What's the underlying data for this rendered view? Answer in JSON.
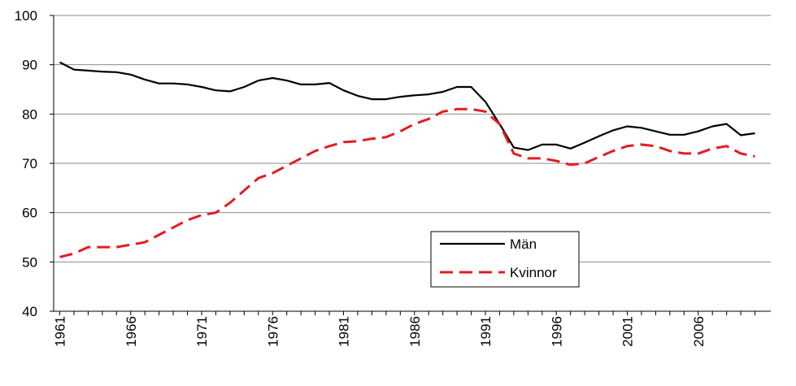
{
  "chart_data": {
    "type": "line",
    "title": "",
    "xlabel": "",
    "ylabel": "",
    "xlim": [
      1961,
      2010
    ],
    "ylim": [
      40,
      100
    ],
    "y_ticks": [
      40,
      50,
      60,
      70,
      80,
      90,
      100
    ],
    "x_tick_labels": [
      "1961",
      "1966",
      "1971",
      "1976",
      "1981",
      "1986",
      "1991",
      "1996",
      "2001",
      "2006"
    ],
    "grid": "horizontal",
    "legend_position": "lower-right inside plot",
    "x": [
      1961,
      1962,
      1963,
      1964,
      1965,
      1966,
      1967,
      1968,
      1969,
      1970,
      1971,
      1972,
      1973,
      1974,
      1975,
      1976,
      1977,
      1978,
      1979,
      1980,
      1981,
      1982,
      1983,
      1984,
      1985,
      1986,
      1987,
      1988,
      1989,
      1990,
      1991,
      1992,
      1993,
      1994,
      1995,
      1996,
      1997,
      1998,
      1999,
      2000,
      2001,
      2002,
      2003,
      2004,
      2005,
      2006,
      2007,
      2008,
      2009,
      2010
    ],
    "series": [
      {
        "name": "Män",
        "color": "#000000",
        "dash": "solid",
        "values": [
          90.5,
          89.0,
          88.8,
          88.6,
          88.5,
          88.0,
          87.0,
          86.2,
          86.2,
          86.0,
          85.5,
          84.8,
          84.6,
          85.5,
          86.8,
          87.3,
          86.8,
          86.0,
          86.0,
          86.3,
          84.8,
          83.7,
          83.0,
          83.0,
          83.5,
          83.8,
          84.0,
          84.5,
          85.5,
          85.5,
          82.5,
          78.0,
          73.2,
          72.7,
          73.8,
          73.8,
          73.0,
          74.2,
          75.5,
          76.7,
          77.5,
          77.2,
          76.5,
          75.8,
          75.8,
          76.5,
          77.5,
          78.0,
          75.7,
          76.1
        ]
      },
      {
        "name": "Kvinnor",
        "color": "#e31c23",
        "dash": "dashed",
        "values": [
          51.0,
          51.7,
          53.0,
          53.0,
          53.0,
          53.5,
          54.0,
          55.5,
          57.0,
          58.5,
          59.5,
          60.0,
          62.0,
          64.5,
          67.0,
          68.0,
          69.5,
          71.0,
          72.5,
          73.5,
          74.3,
          74.5,
          75.0,
          75.3,
          76.5,
          78.0,
          79.0,
          80.5,
          81.0,
          81.0,
          80.5,
          78.0,
          72.0,
          71.0,
          71.0,
          70.5,
          69.7,
          70.0,
          71.3,
          72.5,
          73.5,
          73.8,
          73.5,
          72.5,
          72.0,
          72.0,
          73.0,
          73.5,
          72.0,
          71.4
        ]
      }
    ]
  }
}
